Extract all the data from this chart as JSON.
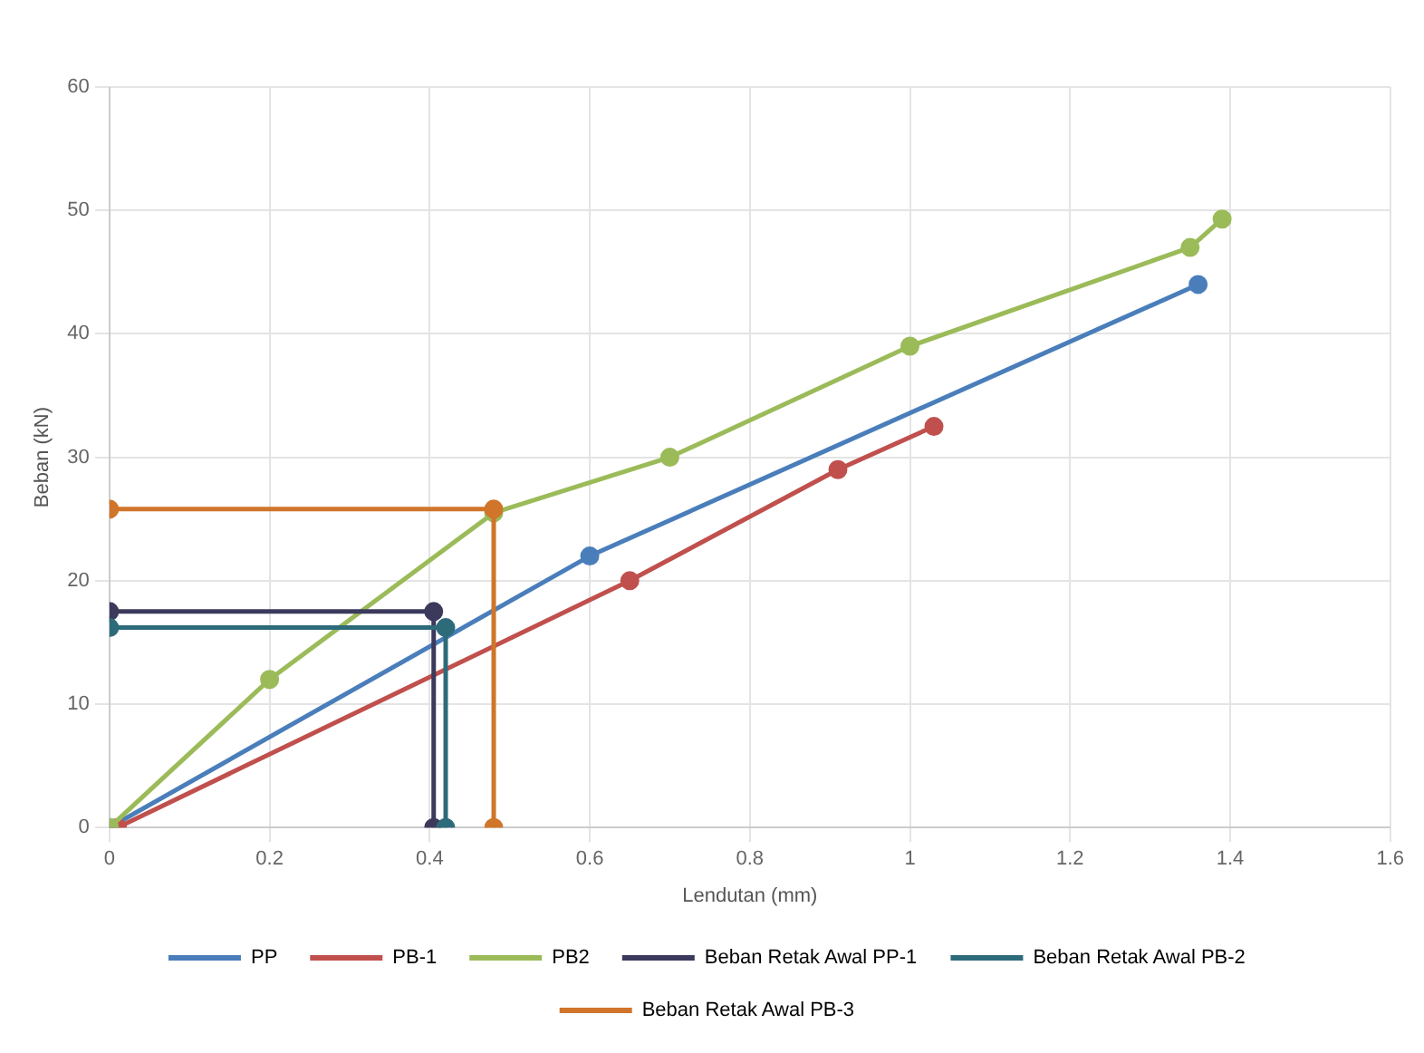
{
  "chart_data": {
    "type": "line",
    "xlabel": "Lendutan (mm)",
    "ylabel": "Beban (kN)",
    "xlim": [
      0,
      1.6
    ],
    "xticks": [
      0,
      0.2,
      0.4,
      0.6,
      0.8,
      1,
      1.2,
      1.4,
      1.6
    ],
    "ylim": [
      0,
      60
    ],
    "yticks": [
      0,
      10,
      20,
      30,
      40,
      50,
      60
    ],
    "grid": true,
    "legend": "bottom",
    "marker": "circle",
    "line_style": "solid",
    "series": [
      {
        "name": "PP",
        "color": "#4a7ebb",
        "x": [
          0,
          0.6,
          1.36
        ],
        "values": [
          0,
          22,
          44
        ]
      },
      {
        "name": "PB-1",
        "color": "#c0504d",
        "x": [
          0.01,
          0.65,
          0.91,
          1.03
        ],
        "values": [
          0,
          20,
          29,
          32.5
        ]
      },
      {
        "name": "PB2",
        "color": "#9bbb59",
        "x": [
          0,
          0.2,
          0.48,
          0.7,
          1,
          1.35,
          1.39
        ],
        "values": [
          0,
          12,
          25.5,
          30,
          39,
          47,
          49.3
        ]
      },
      {
        "name": "Beban Retak Awal PP-1",
        "color": "#3b3a5c",
        "x": [
          0,
          0.405,
          0.405
        ],
        "values": [
          17.5,
          17.5,
          0
        ]
      },
      {
        "name": "Beban Retak Awal PB-2",
        "color": "#2e6b7a",
        "x": [
          0,
          0.42,
          0.42
        ],
        "values": [
          16.2,
          16.2,
          0
        ]
      },
      {
        "name": "Beban Retak Awal PB-3",
        "color": "#d0752a",
        "x": [
          0,
          0.48,
          0.48
        ],
        "values": [
          25.8,
          25.8,
          0
        ]
      }
    ]
  }
}
